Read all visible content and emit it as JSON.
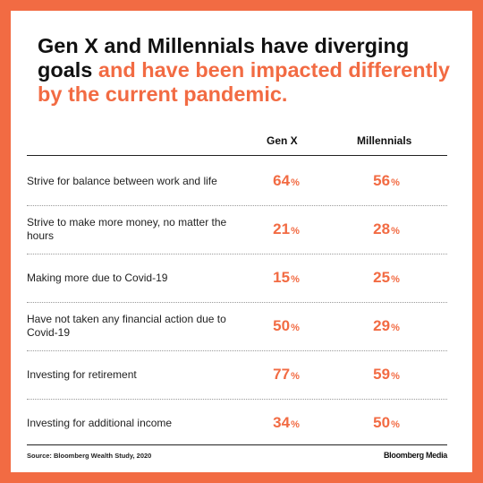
{
  "title": {
    "part1": "Gen X and Millennials have diverging goals",
    "part2": "and have been impacted differently by the current pandemic."
  },
  "columns": {
    "gen_x": "Gen X",
    "millennials": "Millennials"
  },
  "percent_symbol": "%",
  "rows": [
    {
      "label": "Strive for balance between work and life",
      "gen_x": "64",
      "millennials": "56"
    },
    {
      "label": "Strive to make more money, no matter the hours",
      "gen_x": "21",
      "millennials": "28"
    },
    {
      "label": "Making more due to Covid-19",
      "gen_x": "15",
      "millennials": "25"
    },
    {
      "label": "Have not taken any financial action due to Covid-19",
      "gen_x": "50",
      "millennials": "29"
    },
    {
      "label": "Investing for retirement",
      "gen_x": "77",
      "millennials": "59"
    },
    {
      "label": "Investing for additional income",
      "gen_x": "34",
      "millennials": "50"
    }
  ],
  "footer": {
    "source": "Source: Bloomberg Wealth Study, 2020",
    "brand": "Bloomberg Media"
  },
  "colors": {
    "accent": "#f26b43",
    "text": "#111111"
  },
  "chart_data": {
    "type": "table",
    "title": "Gen X and Millennials have diverging goals and have been impacted differently by the current pandemic.",
    "columns": [
      "Gen X",
      "Millennials"
    ],
    "categories": [
      "Strive for balance between work and life",
      "Strive to make more money, no matter the hours",
      "Making more due to Covid-19",
      "Have not taken any financial action due to Covid-19",
      "Investing for retirement",
      "Investing for additional income"
    ],
    "series": [
      {
        "name": "Gen X",
        "values": [
          64,
          21,
          15,
          50,
          77,
          34
        ]
      },
      {
        "name": "Millennials",
        "values": [
          56,
          28,
          25,
          29,
          59,
          50
        ]
      }
    ],
    "unit": "%"
  }
}
